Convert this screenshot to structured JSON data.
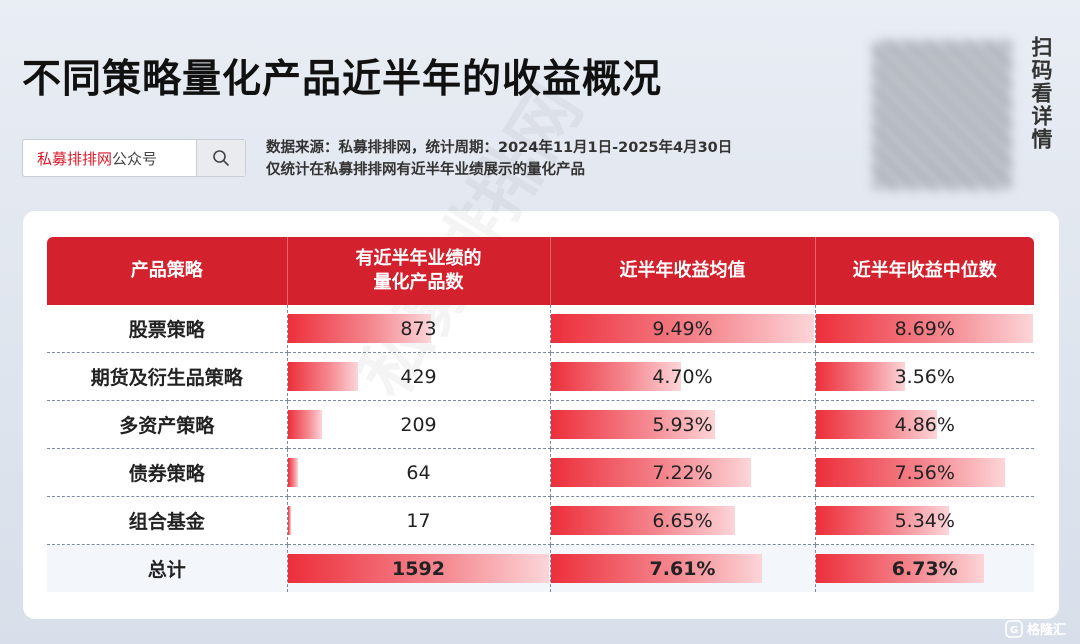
{
  "header": {
    "title": "不同策略量化产品近半年的收益概况",
    "search": {
      "brand": "私募排排网",
      "suffix": "公众号"
    },
    "notes": [
      "数据来源：私募排排网，统计周期：2024年11月1日-2025年4月30日",
      "仅统计在私募排排网有近半年业绩展示的量化产品"
    ],
    "scan_label": "扫码看详情"
  },
  "watermark": "私募排排网",
  "logo_text": "格隆汇",
  "chart_data": {
    "type": "table",
    "columns": [
      "产品策略",
      "有近半年业绩的量化产品数",
      "近半年收益均值",
      "近半年收益中位数"
    ],
    "header_lines": [
      [
        "产品策略"
      ],
      [
        "有近半年业绩的",
        "量化产品数"
      ],
      [
        "近半年收益均值"
      ],
      [
        "近半年收益中位数"
      ]
    ],
    "rows": [
      {
        "strategy": "股票策略",
        "count": 873,
        "count_label": "873",
        "mean": 9.49,
        "mean_label": "9.49%",
        "median": 8.69,
        "median_label": "8.69%"
      },
      {
        "strategy": "期货及衍生品策略",
        "count": 429,
        "count_label": "429",
        "mean": 4.7,
        "mean_label": "4.70%",
        "median": 3.56,
        "median_label": "3.56%"
      },
      {
        "strategy": "多资产策略",
        "count": 209,
        "count_label": "209",
        "mean": 5.93,
        "mean_label": "5.93%",
        "median": 4.86,
        "median_label": "4.86%"
      },
      {
        "strategy": "债券策略",
        "count": 64,
        "count_label": "64",
        "mean": 7.22,
        "mean_label": "7.22%",
        "median": 7.56,
        "median_label": "7.56%"
      },
      {
        "strategy": "组合基金",
        "count": 17,
        "count_label": "17",
        "mean": 6.65,
        "mean_label": "6.65%",
        "median": 5.34,
        "median_label": "5.34%"
      },
      {
        "strategy": "总计",
        "count": 1592,
        "count_label": "1592",
        "mean": 7.61,
        "mean_label": "7.61%",
        "median": 6.73,
        "median_label": "6.73%"
      }
    ],
    "bar_max": {
      "count": 1592,
      "mean": 9.49,
      "median": 8.69
    },
    "colors": {
      "header": "#d3212d",
      "bar_start": "#ec2f3b",
      "bar_end": "#fcd5d8"
    }
  }
}
